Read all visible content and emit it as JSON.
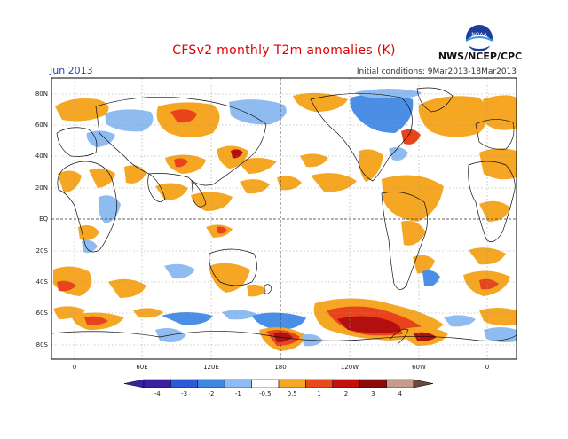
{
  "header": {
    "title": "CFSv2 monthly T2m anomalies (K)",
    "month": "Jun 2013",
    "initial_conditions": "Initial conditions: 9Mar2013-18Mar2013",
    "agency": "NWS/NCEP/CPC",
    "logo_text": "NOAA"
  },
  "map": {
    "lat_labels": [
      "80N",
      "60N",
      "40N",
      "20N",
      "EQ",
      "20S",
      "40S",
      "60S",
      "80S"
    ],
    "lon_labels": [
      "0",
      "60E",
      "120E",
      "180",
      "120W",
      "60W",
      "0"
    ]
  },
  "colorbar": {
    "ticks": [
      "-4",
      "-3",
      "-2",
      "-1",
      "-0.5",
      "0.5",
      "1",
      "2",
      "3",
      "4"
    ],
    "colors": [
      "#3b1fa3",
      "#2b5ad6",
      "#3f86e0",
      "#8fbcf0",
      "#ffffff",
      "#f5a623",
      "#e84a1a",
      "#c40f0f",
      "#8b0a0a",
      "#c89a8c"
    ],
    "cold_end_color": "#3b1fa3",
    "warm_end_color": "#6b4a3e"
  },
  "colors": {
    "orange": "#f5a623",
    "red": "#e8431a",
    "darkred": "#b30f0f",
    "lightblue": "#8fbcf0",
    "blue": "#4a8ee6",
    "title_red": "#e00000"
  }
}
